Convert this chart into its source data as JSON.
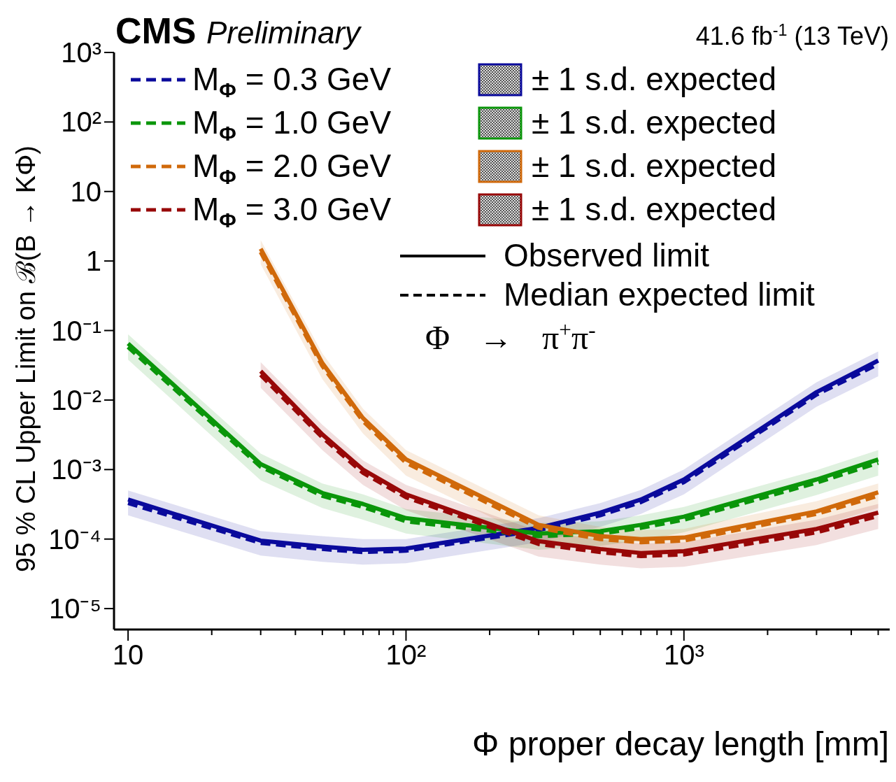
{
  "chart_data": {
    "type": "line",
    "title": "CMS",
    "subtitle": "Preliminary",
    "xlabel": "Φ proper decay length [mm]",
    "ylabel": "95 % CL Upper Limit on ℬ(B → KΦ)",
    "annotations": [
      "± 1 s.d. expected",
      "± 1 s.d. expected",
      "± 1 s.d. expected",
      "± 1 s.d. expected",
      "Observed limit",
      "Median expected limit",
      "Φ → π$^{+}$π$^{-}$",
      "41.6 fb$^{-1}$ (13 TeV)"
    ],
    "x": [
      10,
      30,
      50,
      70,
      100,
      300,
      500,
      700,
      1000,
      3000,
      5000
    ],
    "log": "xy",
    "grid": false,
    "legend": "top",
    "marker": "none",
    "xlim": [
      8.9,
      5500
    ],
    "ylim": [
      5e-06,
      1000
    ],
    "xticks": [
      10,
      {
        "value": 20,
        "label": null
      },
      {
        "value": 30,
        "label": null
      },
      {
        "value": 40,
        "label": null
      },
      {
        "value": 50,
        "label": null
      },
      {
        "value": 60,
        "label": null
      },
      {
        "value": 70,
        "label": null
      },
      {
        "value": 80,
        "label": null
      },
      {
        "value": 90,
        "label": null
      },
      {
        "value": 100,
        "label": "10²"
      },
      {
        "value": 200,
        "label": null
      },
      {
        "value": 300,
        "label": null
      },
      {
        "value": 400,
        "label": null
      },
      {
        "value": 500,
        "label": null
      },
      {
        "value": 600,
        "label": null
      },
      {
        "value": 700,
        "label": null
      },
      {
        "value": 800,
        "label": null
      },
      {
        "value": 900,
        "label": null
      },
      {
        "value": 1000,
        "label": "10³"
      },
      {
        "value": 2000,
        "label": null
      },
      {
        "value": 3000,
        "label": null
      },
      {
        "value": 4000,
        "label": null
      },
      {
        "value": 5000,
        "label": null
      }
    ],
    "yticks": [
      {
        "value": 1e-05,
        "label": "10⁻⁵"
      },
      {
        "value": 0.0001,
        "label": "10⁻⁴"
      },
      {
        "value": 0.001,
        "label": "10⁻³"
      },
      {
        "value": 0.01,
        "label": "10⁻²"
      },
      {
        "value": 0.1,
        "label": "10⁻¹"
      },
      1,
      10,
      {
        "value": 100,
        "label": "10²"
      },
      {
        "value": 1000,
        "label": "10³"
      }
    ],
    "series": [
      {
        "color": "#0a0a9c",
        "line_style": "solid",
        "values": [
          0.00037,
          9.5e-05,
          7.8e-05,
          7e-05,
          7.3e-05,
          0.000145,
          0.00024,
          0.00037,
          0.00072,
          0.013,
          0.037
        ]
      },
      {
        "name": "M$_{Φ}$ = 0.3 GeV",
        "color": "#0a0a9c",
        "line_style": "dashed",
        "values": [
          0.00033,
          8.8e-05,
          7.2e-05,
          6.5e-05,
          6.8e-05,
          0.000135,
          0.00022,
          0.00034,
          0.00066,
          0.012,
          0.033
        ],
        "lower": [
          0.00022,
          5.8e-05,
          4.7e-05,
          4.3e-05,
          4.5e-05,
          9e-05,
          0.00015,
          0.00023,
          0.00044,
          0.008,
          0.022
        ],
        "upper": [
          0.0005,
          0.00013,
          0.00011,
          0.0001,
          0.0001,
          0.0002,
          0.00033,
          0.00051,
          0.001,
          0.018,
          0.05
        ]
      },
      {
        "color": "#0a960a",
        "line_style": "solid",
        "values": [
          0.065,
          0.0012,
          0.00046,
          0.00032,
          0.0002,
          0.00012,
          0.00013,
          0.00016,
          0.00021,
          0.00072,
          0.0014
        ]
      },
      {
        "name": "M$_{Φ}$ = 1.0 GeV",
        "color": "#0a960a",
        "line_style": "dashed",
        "values": [
          0.058,
          0.0011,
          0.00042,
          0.00029,
          0.00018,
          0.00011,
          0.00012,
          0.000145,
          0.00019,
          0.00065,
          0.00125
        ],
        "lower": [
          0.038,
          0.0007,
          0.00028,
          0.00019,
          0.00012,
          7e-05,
          8e-05,
          9.5e-05,
          0.000125,
          0.00043,
          0.00082
        ],
        "upper": [
          0.088,
          0.0017,
          0.00063,
          0.00044,
          0.00027,
          0.00017,
          0.00018,
          0.00022,
          0.00029,
          0.00098,
          0.0019
        ]
      },
      {
        "color": "#d0690a",
        "line_style": "solid",
        "values": [
          null,
          1.5,
          0.034,
          0.0055,
          0.0014,
          0.00016,
          0.00011,
          0.0001,
          0.000105,
          0.00025,
          0.00047
        ]
      },
      {
        "name": "M$_{Φ}$ = 2.0 GeV",
        "color": "#d0690a",
        "line_style": "dashed",
        "values": [
          null,
          1.35,
          0.031,
          0.005,
          0.00125,
          0.000145,
          0.0001,
          9e-05,
          9.5e-05,
          0.00023,
          0.00042
        ],
        "lower": [
          null,
          0.9,
          0.02,
          0.0033,
          0.00082,
          9.5e-05,
          6.6e-05,
          6e-05,
          6.2e-05,
          0.00015,
          0.00028
        ],
        "upper": [
          null,
          2,
          0.047,
          0.0075,
          0.0019,
          0.00022,
          0.00015,
          0.000135,
          0.00014,
          0.00035,
          0.00063
        ]
      },
      {
        "color": "#980808",
        "line_style": "solid",
        "values": [
          null,
          0.026,
          0.0032,
          0.001,
          0.00044,
          9.3e-05,
          7.2e-05,
          6.3e-05,
          6.7e-05,
          0.00014,
          0.00024
        ]
      },
      {
        "name": "M$_{Φ}$ = 3.0 GeV",
        "color": "#980808",
        "line_style": "dashed",
        "values": [
          null,
          0.023,
          0.0029,
          0.0009,
          0.0004,
          8.5e-05,
          6.5e-05,
          5.7e-05,
          6e-05,
          0.000125,
          0.000215
        ],
        "lower": [
          null,
          0.015,
          0.0019,
          0.0006,
          0.00026,
          5.6e-05,
          4.3e-05,
          3.8e-05,
          4e-05,
          8.2e-05,
          0.00014
        ],
        "upper": [
          null,
          0.035,
          0.0044,
          0.00135,
          0.0006,
          0.00013,
          9.8e-05,
          8.6e-05,
          9e-05,
          0.00019,
          0.00032
        ]
      }
    ]
  }
}
